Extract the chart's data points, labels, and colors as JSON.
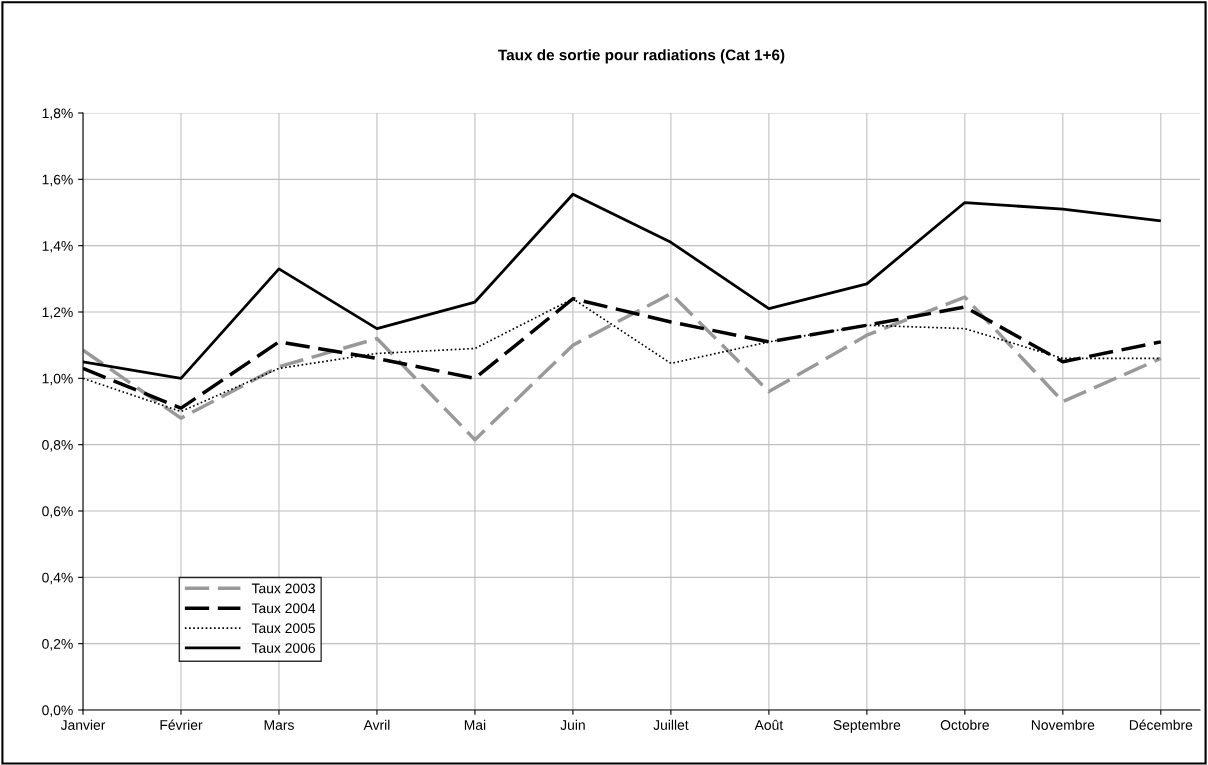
{
  "chart_data": {
    "type": "line",
    "title": "Taux de sortie pour radiations (Cat 1+6)",
    "categories": [
      "Janvier",
      "Février",
      "Mars",
      "Avril",
      "Mai",
      "Juin",
      "Juillet",
      "Août",
      "Septembre",
      "Octobre",
      "Novembre",
      "Décembre"
    ],
    "series": [
      {
        "name": "Taux 2003",
        "color": "#999999",
        "line_style": "dashed",
        "values": [
          1.085,
          0.88,
          1.035,
          1.12,
          0.815,
          1.1,
          1.255,
          0.96,
          1.13,
          1.245,
          0.93,
          1.06
        ]
      },
      {
        "name": "Taux 2004",
        "color": "#000000",
        "line_style": "dashed",
        "values": [
          1.03,
          0.91,
          1.11,
          1.06,
          1.0,
          1.24,
          1.17,
          1.11,
          1.16,
          1.215,
          1.05,
          1.11
        ]
      },
      {
        "name": "Taux 2005",
        "color": "#000000",
        "line_style": "dotted",
        "values": [
          1.0,
          0.9,
          1.03,
          1.075,
          1.09,
          1.24,
          1.045,
          1.11,
          1.16,
          1.15,
          1.06,
          1.06
        ]
      },
      {
        "name": "Taux 2006",
        "color": "#000000",
        "line_style": "solid",
        "values": [
          1.05,
          1.0,
          1.33,
          1.15,
          1.23,
          1.555,
          1.41,
          1.21,
          1.285,
          1.53,
          1.51,
          1.475
        ]
      }
    ],
    "ylim": [
      0,
      1.8
    ],
    "yticks": [
      {
        "value": 0,
        "label": "0,0%"
      },
      {
        "value": 0.2,
        "label": "0,2%"
      },
      {
        "value": 0.4,
        "label": "0,4%"
      },
      {
        "value": 0.6,
        "label": "0,6%"
      },
      {
        "value": 0.8,
        "label": "0,8%"
      },
      {
        "value": 1.0,
        "label": "1,0%"
      },
      {
        "value": 1.2,
        "label": "1,2%"
      },
      {
        "value": 1.4,
        "label": "1,4%"
      },
      {
        "value": 1.6,
        "label": "1,6%"
      },
      {
        "value": 1.8,
        "label": "1,8%"
      }
    ],
    "grid": true,
    "legend": "bottom left",
    "marker": "none"
  }
}
